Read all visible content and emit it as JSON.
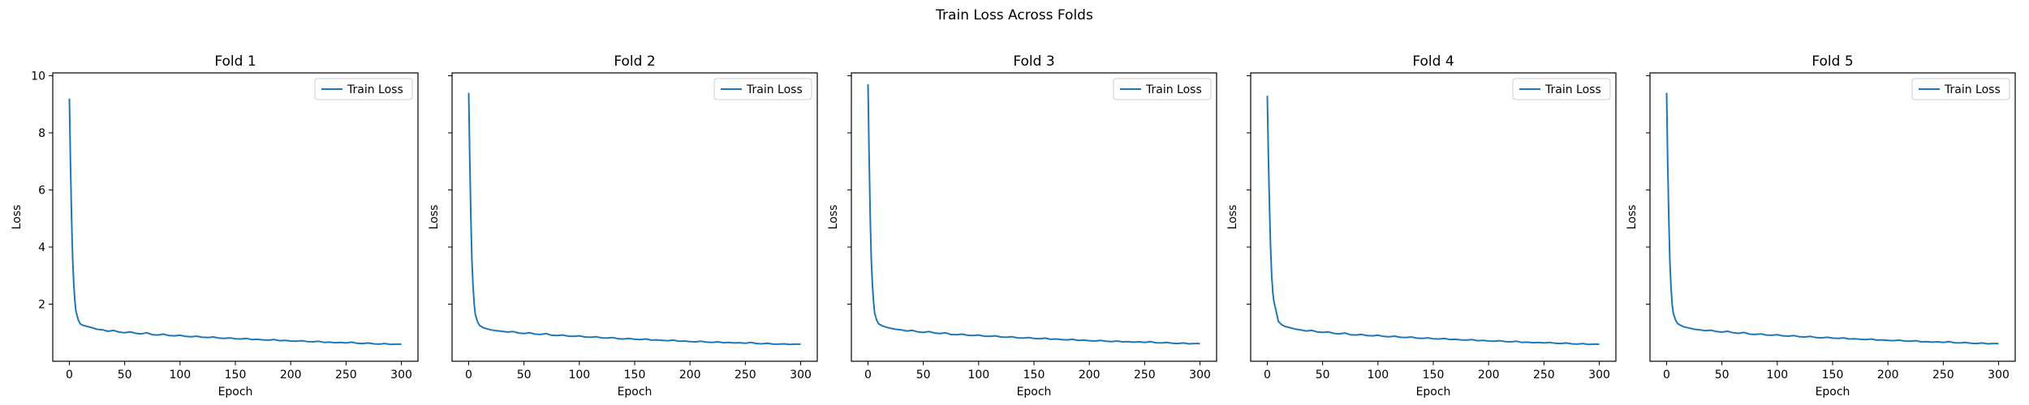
{
  "figure": {
    "suptitle": "Train Loss Across Folds"
  },
  "style": {
    "line_color": "#1f77b4",
    "axes_color": "#000000",
    "legend_border": "#cccccc"
  },
  "chart_data": [
    {
      "type": "line",
      "title": "Fold 1",
      "xlabel": "Epoch",
      "ylabel": "Loss",
      "xlim": [
        -15,
        315
      ],
      "ylim": [
        0.0,
        10.1
      ],
      "xticks": [
        0,
        50,
        100,
        150,
        200,
        250,
        300
      ],
      "yticks": [
        2,
        4,
        6,
        8,
        10
      ],
      "show_ytick_labels": true,
      "grid": false,
      "legend": "upper right",
      "series": [
        {
          "name": "Train Loss",
          "x": [
            0,
            1,
            2,
            3,
            4,
            5,
            6,
            8,
            10,
            13,
            16,
            20,
            25,
            30,
            35,
            40,
            45,
            50,
            55,
            60,
            65,
            70,
            75,
            80,
            85,
            90,
            95,
            100,
            105,
            110,
            115,
            120,
            125,
            130,
            135,
            140,
            145,
            150,
            155,
            160,
            165,
            170,
            175,
            180,
            185,
            190,
            195,
            200,
            205,
            210,
            215,
            220,
            225,
            230,
            235,
            240,
            245,
            250,
            255,
            260,
            265,
            270,
            275,
            280,
            285,
            290,
            295,
            300
          ],
          "y": [
            9.2,
            7.0,
            5.0,
            3.6,
            2.7,
            2.1,
            1.75,
            1.45,
            1.3,
            1.25,
            1.22,
            1.18,
            1.12,
            1.1,
            1.05,
            1.08,
            1.02,
            1.0,
            1.03,
            0.98,
            0.96,
            1.0,
            0.93,
            0.92,
            0.95,
            0.9,
            0.89,
            0.91,
            0.87,
            0.86,
            0.88,
            0.84,
            0.83,
            0.85,
            0.81,
            0.8,
            0.82,
            0.79,
            0.78,
            0.8,
            0.76,
            0.77,
            0.75,
            0.74,
            0.76,
            0.72,
            0.73,
            0.71,
            0.7,
            0.72,
            0.69,
            0.68,
            0.7,
            0.66,
            0.67,
            0.65,
            0.66,
            0.64,
            0.67,
            0.63,
            0.62,
            0.64,
            0.61,
            0.6,
            0.62,
            0.59,
            0.6,
            0.6
          ]
        }
      ]
    },
    {
      "type": "line",
      "title": "Fold 2",
      "xlabel": "Epoch",
      "ylabel": "Loss",
      "xlim": [
        -15,
        315
      ],
      "ylim": [
        0.0,
        10.1
      ],
      "xticks": [
        0,
        50,
        100,
        150,
        200,
        250,
        300
      ],
      "yticks": [
        2,
        4,
        6,
        8,
        10
      ],
      "show_ytick_labels": false,
      "grid": false,
      "legend": "upper right",
      "series": [
        {
          "name": "Train Loss",
          "x": [
            0,
            1,
            2,
            3,
            4,
            5,
            6,
            8,
            10,
            13,
            16,
            20,
            25,
            30,
            35,
            40,
            45,
            50,
            55,
            60,
            65,
            70,
            75,
            80,
            85,
            90,
            95,
            100,
            105,
            110,
            115,
            120,
            125,
            130,
            135,
            140,
            145,
            150,
            155,
            160,
            165,
            170,
            175,
            180,
            185,
            190,
            195,
            200,
            205,
            210,
            215,
            220,
            225,
            230,
            235,
            240,
            245,
            250,
            255,
            260,
            265,
            270,
            275,
            280,
            285,
            290,
            295,
            300
          ],
          "y": [
            9.4,
            7.1,
            5.0,
            3.5,
            2.6,
            2.0,
            1.65,
            1.38,
            1.25,
            1.18,
            1.14,
            1.1,
            1.07,
            1.05,
            1.02,
            1.04,
            0.99,
            0.97,
            1.0,
            0.95,
            0.94,
            0.97,
            0.91,
            0.9,
            0.92,
            0.88,
            0.87,
            0.89,
            0.85,
            0.84,
            0.86,
            0.82,
            0.81,
            0.83,
            0.79,
            0.78,
            0.8,
            0.77,
            0.76,
            0.78,
            0.74,
            0.75,
            0.73,
            0.72,
            0.74,
            0.7,
            0.71,
            0.69,
            0.68,
            0.7,
            0.67,
            0.66,
            0.68,
            0.65,
            0.66,
            0.64,
            0.65,
            0.63,
            0.66,
            0.62,
            0.61,
            0.63,
            0.6,
            0.6,
            0.61,
            0.59,
            0.6,
            0.6
          ]
        }
      ]
    },
    {
      "type": "line",
      "title": "Fold 3",
      "xlabel": "Epoch",
      "ylabel": "Loss",
      "xlim": [
        -15,
        315
      ],
      "ylim": [
        0.0,
        10.1
      ],
      "xticks": [
        0,
        50,
        100,
        150,
        200,
        250,
        300
      ],
      "yticks": [
        2,
        4,
        6,
        8,
        10
      ],
      "show_ytick_labels": false,
      "grid": false,
      "legend": "upper right",
      "series": [
        {
          "name": "Train Loss",
          "x": [
            0,
            1,
            2,
            3,
            4,
            5,
            6,
            8,
            10,
            13,
            16,
            20,
            25,
            30,
            35,
            40,
            45,
            50,
            55,
            60,
            65,
            70,
            75,
            80,
            85,
            90,
            95,
            100,
            105,
            110,
            115,
            120,
            125,
            130,
            135,
            140,
            145,
            150,
            155,
            160,
            165,
            170,
            175,
            180,
            185,
            190,
            195,
            200,
            205,
            210,
            215,
            220,
            225,
            230,
            235,
            240,
            245,
            250,
            255,
            260,
            265,
            270,
            275,
            280,
            285,
            290,
            295,
            300
          ],
          "y": [
            9.7,
            7.3,
            5.1,
            3.6,
            2.7,
            2.1,
            1.7,
            1.42,
            1.3,
            1.24,
            1.2,
            1.16,
            1.12,
            1.1,
            1.06,
            1.08,
            1.03,
            1.01,
            1.04,
            0.99,
            0.97,
            1.0,
            0.94,
            0.93,
            0.95,
            0.91,
            0.9,
            0.92,
            0.88,
            0.87,
            0.89,
            0.85,
            0.84,
            0.86,
            0.82,
            0.81,
            0.83,
            0.8,
            0.79,
            0.81,
            0.77,
            0.78,
            0.76,
            0.75,
            0.77,
            0.73,
            0.74,
            0.72,
            0.71,
            0.73,
            0.7,
            0.69,
            0.71,
            0.68,
            0.69,
            0.67,
            0.68,
            0.66,
            0.69,
            0.65,
            0.64,
            0.66,
            0.63,
            0.62,
            0.64,
            0.61,
            0.62,
            0.62
          ]
        }
      ]
    },
    {
      "type": "line",
      "title": "Fold 4",
      "xlabel": "Epoch",
      "ylabel": "Loss",
      "xlim": [
        -15,
        315
      ],
      "ylim": [
        0.0,
        10.1
      ],
      "xticks": [
        0,
        50,
        100,
        150,
        200,
        250,
        300
      ],
      "yticks": [
        2,
        4,
        6,
        8,
        10
      ],
      "show_ytick_labels": false,
      "grid": false,
      "legend": "upper right",
      "series": [
        {
          "name": "Train Loss",
          "x": [
            0,
            1,
            2,
            3,
            4,
            5,
            6,
            8,
            10,
            13,
            16,
            20,
            25,
            30,
            35,
            40,
            45,
            50,
            55,
            60,
            65,
            70,
            75,
            80,
            85,
            90,
            95,
            100,
            105,
            110,
            115,
            120,
            125,
            130,
            135,
            140,
            145,
            150,
            155,
            160,
            165,
            170,
            175,
            180,
            185,
            190,
            195,
            200,
            205,
            210,
            215,
            220,
            225,
            230,
            235,
            240,
            245,
            250,
            255,
            260,
            265,
            270,
            275,
            280,
            285,
            290,
            295,
            300
          ],
          "y": [
            9.3,
            7.2,
            5.4,
            4.0,
            3.0,
            2.4,
            2.1,
            1.75,
            1.4,
            1.28,
            1.22,
            1.18,
            1.13,
            1.1,
            1.06,
            1.08,
            1.03,
            1.01,
            1.03,
            0.98,
            0.96,
            0.99,
            0.93,
            0.92,
            0.94,
            0.9,
            0.89,
            0.91,
            0.87,
            0.86,
            0.88,
            0.84,
            0.83,
            0.85,
            0.81,
            0.8,
            0.82,
            0.79,
            0.78,
            0.8,
            0.76,
            0.77,
            0.75,
            0.74,
            0.76,
            0.72,
            0.73,
            0.71,
            0.7,
            0.72,
            0.69,
            0.68,
            0.7,
            0.66,
            0.67,
            0.65,
            0.66,
            0.64,
            0.66,
            0.63,
            0.62,
            0.64,
            0.61,
            0.6,
            0.62,
            0.59,
            0.6,
            0.6
          ]
        }
      ]
    },
    {
      "type": "line",
      "title": "Fold 5",
      "xlabel": "Epoch",
      "ylabel": "Loss",
      "xlim": [
        -15,
        315
      ],
      "ylim": [
        0.0,
        10.1
      ],
      "xticks": [
        0,
        50,
        100,
        150,
        200,
        250,
        300
      ],
      "yticks": [
        2,
        4,
        6,
        8,
        10
      ],
      "show_ytick_labels": false,
      "grid": false,
      "legend": "upper right",
      "series": [
        {
          "name": "Train Loss",
          "x": [
            0,
            1,
            2,
            3,
            4,
            5,
            6,
            8,
            10,
            13,
            16,
            20,
            25,
            30,
            35,
            40,
            45,
            50,
            55,
            60,
            65,
            70,
            75,
            80,
            85,
            90,
            95,
            100,
            105,
            110,
            115,
            120,
            125,
            130,
            135,
            140,
            145,
            150,
            155,
            160,
            165,
            170,
            175,
            180,
            185,
            190,
            195,
            200,
            205,
            210,
            215,
            220,
            225,
            230,
            235,
            240,
            245,
            250,
            255,
            260,
            265,
            270,
            275,
            280,
            285,
            290,
            295,
            300
          ],
          "y": [
            9.4,
            7.0,
            5.0,
            3.5,
            2.6,
            2.0,
            1.7,
            1.45,
            1.32,
            1.25,
            1.2,
            1.17,
            1.12,
            1.1,
            1.07,
            1.09,
            1.04,
            1.02,
            1.05,
            1.0,
            0.98,
            1.01,
            0.95,
            0.94,
            0.96,
            0.92,
            0.91,
            0.93,
            0.89,
            0.88,
            0.9,
            0.86,
            0.85,
            0.87,
            0.83,
            0.82,
            0.84,
            0.81,
            0.8,
            0.82,
            0.78,
            0.79,
            0.77,
            0.76,
            0.78,
            0.74,
            0.75,
            0.73,
            0.72,
            0.74,
            0.71,
            0.7,
            0.72,
            0.68,
            0.69,
            0.67,
            0.68,
            0.66,
            0.69,
            0.65,
            0.64,
            0.66,
            0.63,
            0.62,
            0.64,
            0.61,
            0.62,
            0.62
          ]
        }
      ]
    }
  ]
}
